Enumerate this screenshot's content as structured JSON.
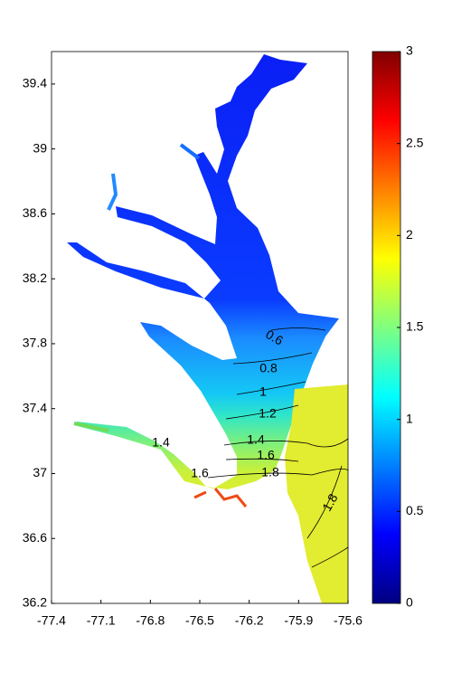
{
  "chart_data": {
    "type": "contour-map",
    "colormap": "jet",
    "xlim": [
      -77.4,
      -75.6
    ],
    "xticks": [
      -77.4,
      -77.1,
      -76.8,
      -76.5,
      -76.2,
      -75.9,
      -75.6
    ],
    "ylim": [
      36.2,
      39.6
    ],
    "yticks": [
      36.2,
      36.6,
      37,
      37.4,
      37.8,
      38.2,
      38.6,
      39,
      39.4
    ],
    "clim": [
      0,
      3
    ],
    "cticks": [
      0,
      0.5,
      1,
      1.5,
      2,
      2.5,
      3
    ],
    "contour_labels": [
      0.6,
      0.8,
      1,
      1.2,
      1.4,
      1.6,
      1.8,
      1.4,
      1.6,
      1.8
    ]
  }
}
